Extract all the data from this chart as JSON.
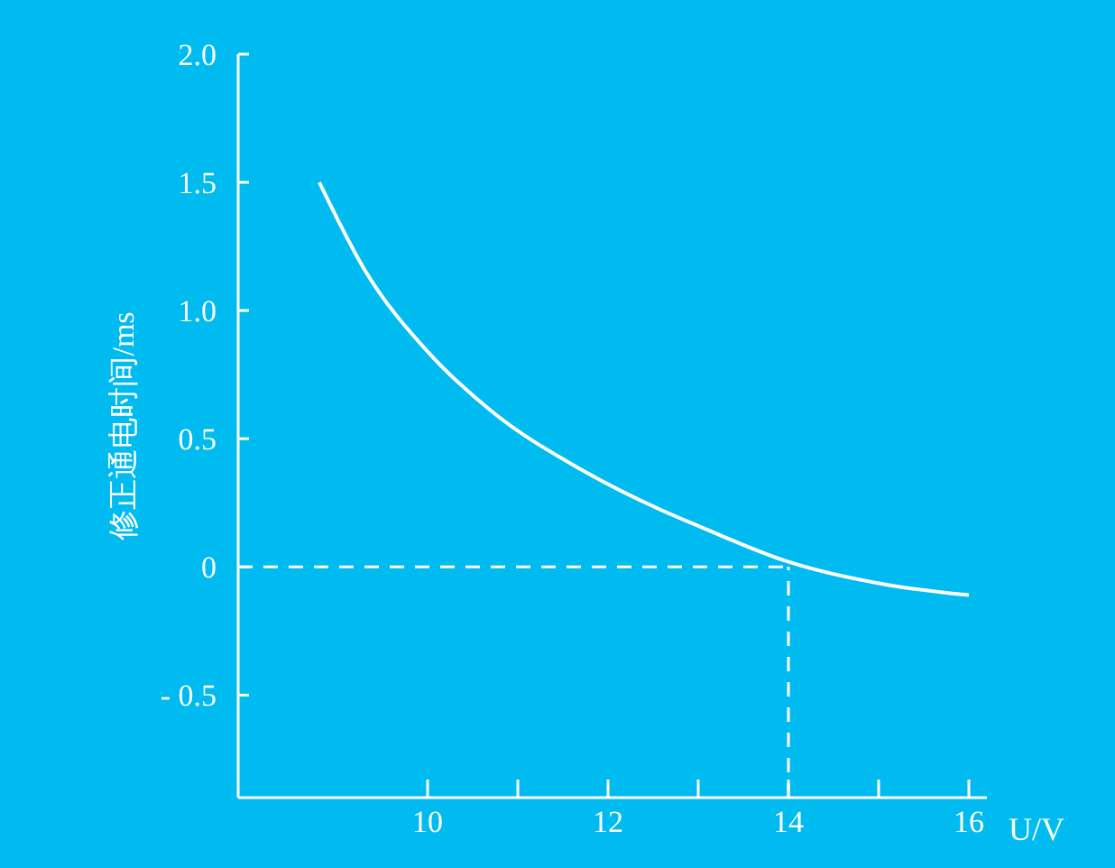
{
  "chart_data": {
    "type": "line",
    "xlabel": "U/V",
    "ylabel": "修正通电时间/ms",
    "xlim": [
      7.9,
      16.2
    ],
    "ylim": [
      -0.9,
      2.0
    ],
    "xticks": [
      10,
      {
        "value": 11,
        "label": null
      },
      12,
      {
        "value": 13,
        "label": null
      },
      14,
      {
        "value": 15,
        "label": null
      },
      16
    ],
    "yticks": [
      {
        "value": -0.5,
        "label": "- 0.5"
      },
      0,
      {
        "value": 0.5,
        "label": "0.5"
      },
      {
        "value": 1,
        "label": "1.0"
      },
      {
        "value": 1.5,
        "label": "1.5"
      },
      {
        "value": 2,
        "label": "2.0"
      }
    ],
    "x": [
      8.8,
      9.3,
      10.0,
      10.7,
      11.7,
      12.6,
      13.0,
      14.0,
      15.1,
      16.0
    ],
    "series": [
      {
        "color": "#ffffff",
        "values": [
          1.5,
          1.16,
          0.84,
          0.61,
          0.38,
          0.22,
          0.16,
          0.02,
          -0.07,
          -0.11
        ]
      }
    ],
    "marker": "none",
    "line_style": "solid",
    "grid": false,
    "legend": false,
    "ref_lines": [
      {
        "axis": "y",
        "value": 0,
        "color": "#ffffff",
        "line_style": "dashed"
      },
      {
        "axis": "x",
        "value": 14,
        "color": "#ffffff",
        "line_style": "dashed"
      }
    ]
  }
}
